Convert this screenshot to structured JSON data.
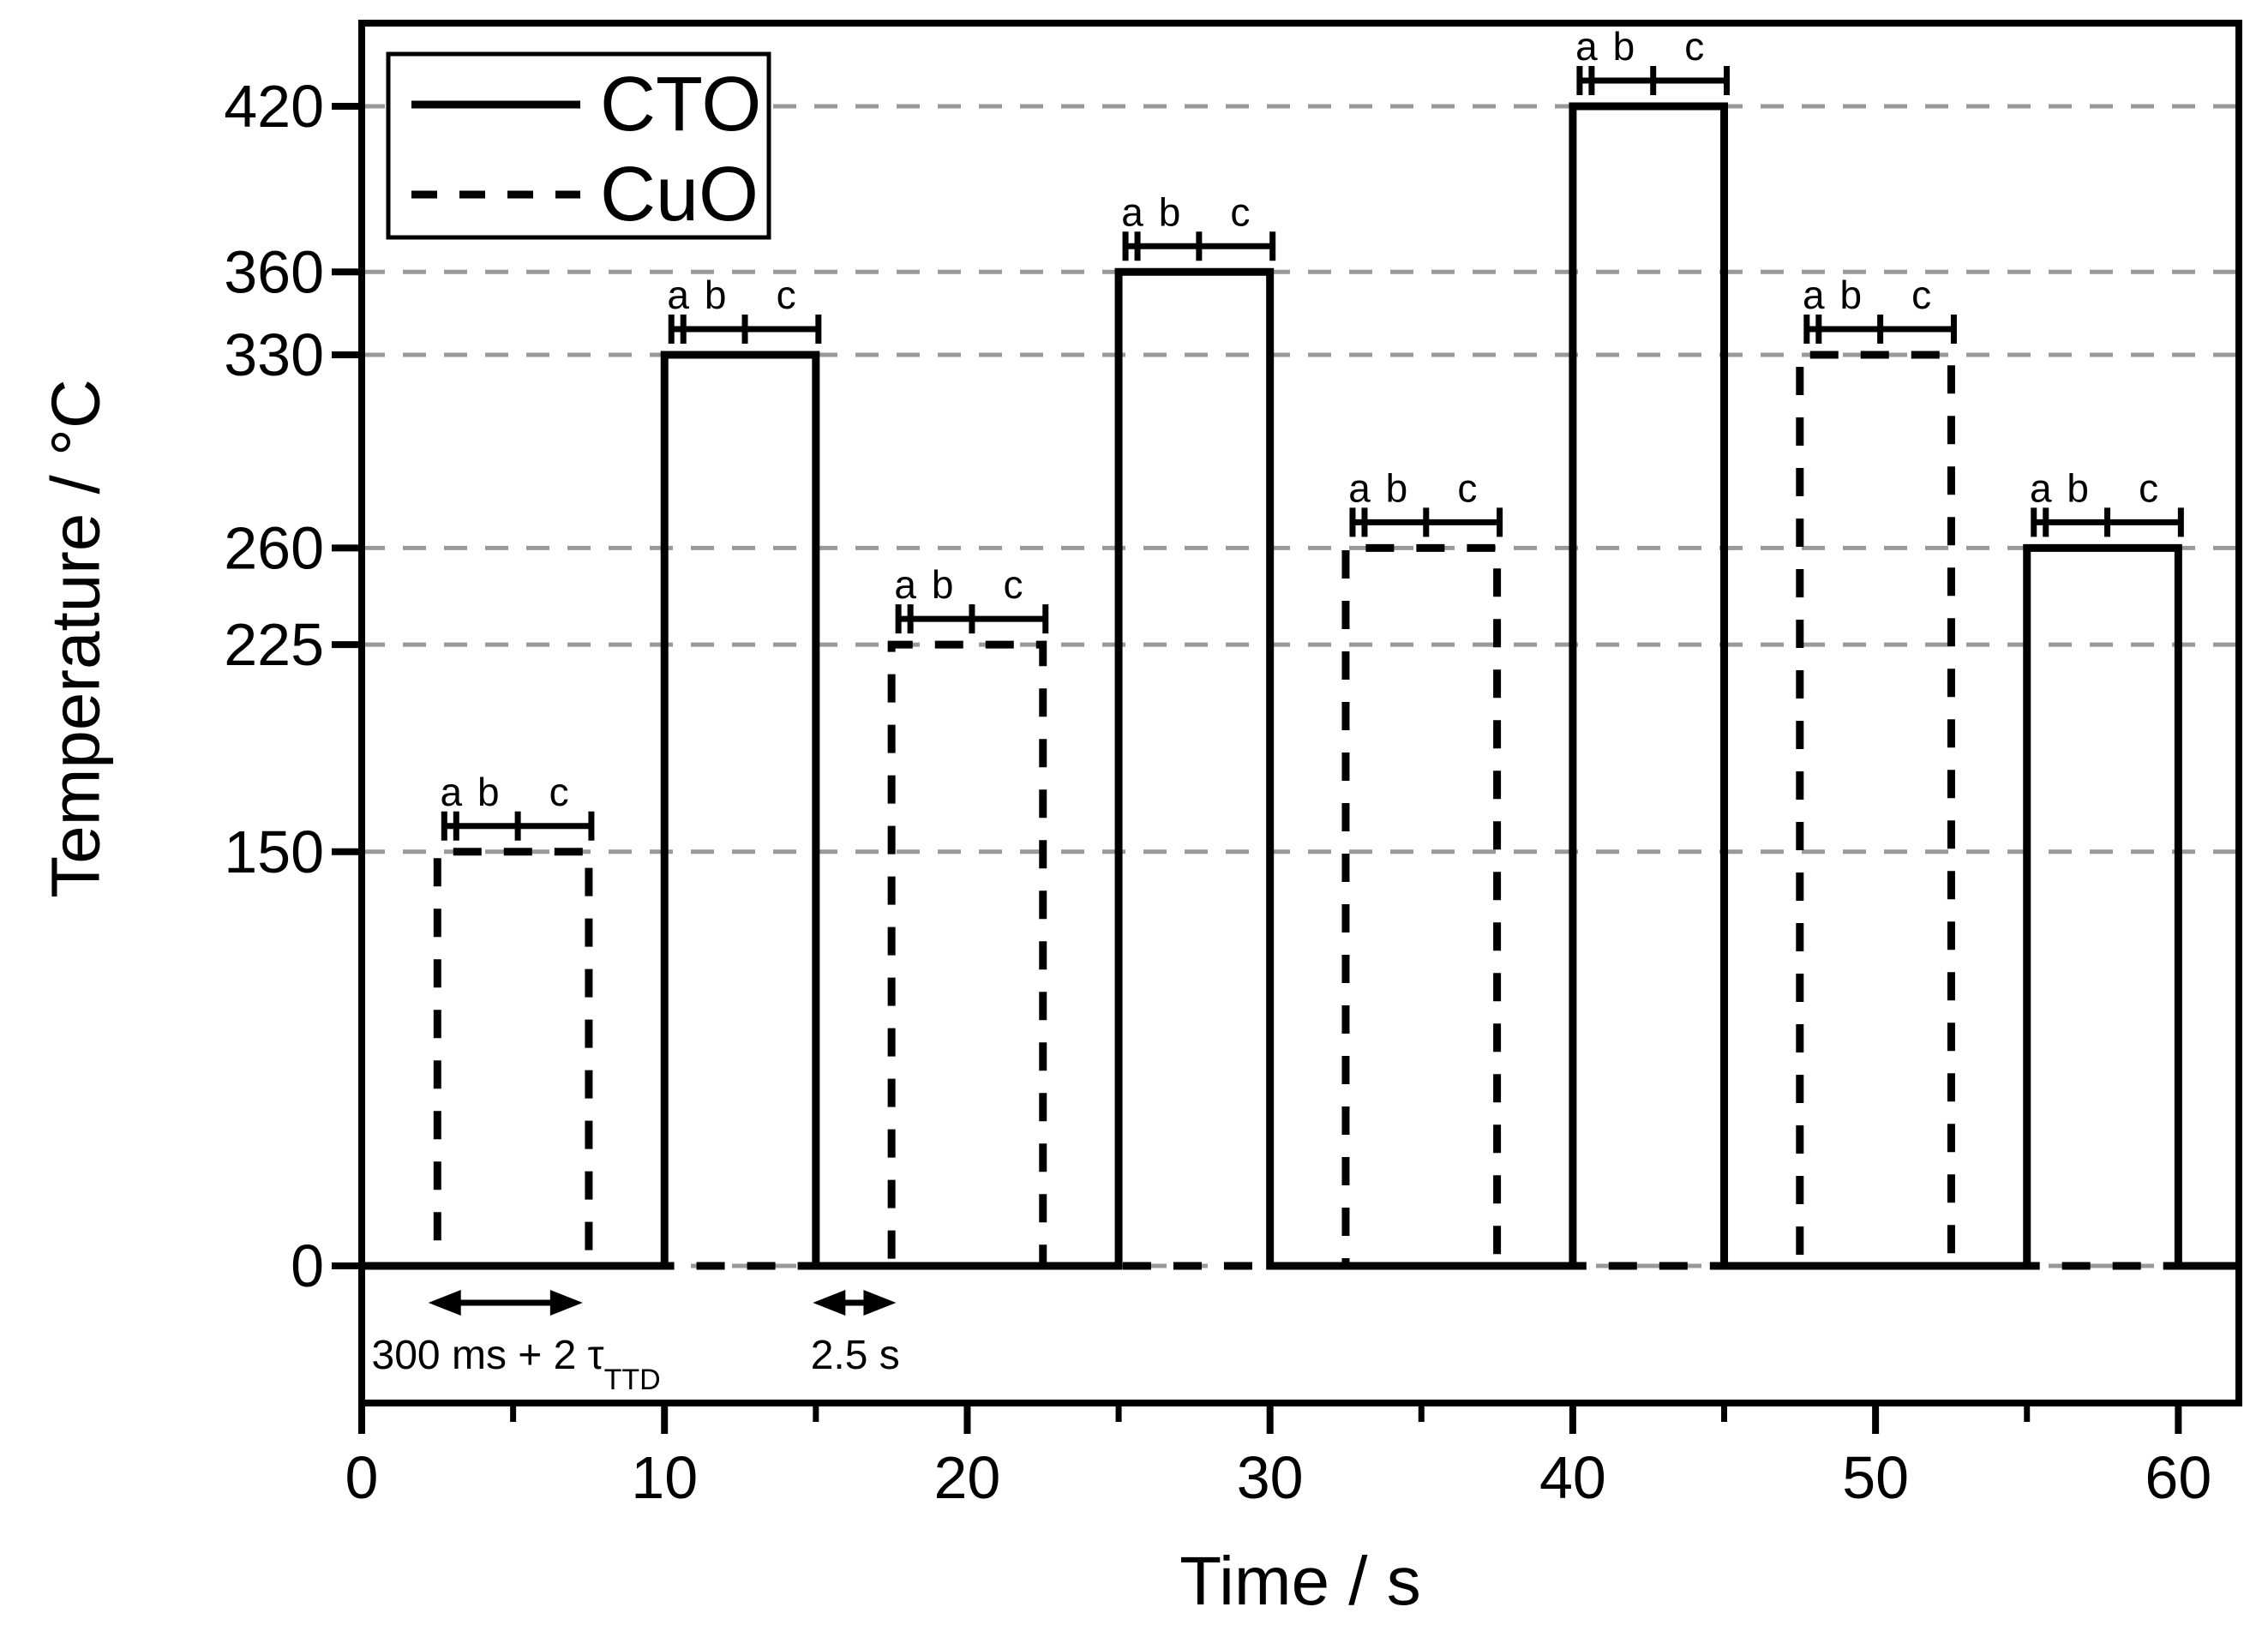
{
  "chart_data": {
    "type": "line",
    "subtype": "temperature-pulse-sequence",
    "xlabel": "Time / s",
    "ylabel": "Temperature / °C",
    "xlim": [
      0,
      62
    ],
    "ylim": [
      -50,
      450
    ],
    "x_major_ticks": [
      0,
      10,
      20,
      30,
      40,
      50,
      60
    ],
    "x_minor_ticks": [
      5,
      15,
      25,
      35,
      45,
      55
    ],
    "y_ticks": [
      0,
      150,
      225,
      260,
      330,
      360,
      420
    ],
    "grid_y_values": [
      0,
      150,
      225,
      260,
      330,
      360,
      420
    ],
    "grid_style": "dashed-horizontal",
    "legend": {
      "position": "top-left",
      "entries": [
        {
          "label": "CTO",
          "line_style": "solid"
        },
        {
          "label": "CuO",
          "line_style": "dashed"
        }
      ]
    },
    "series": [
      {
        "name": "CTO",
        "line_style": "solid",
        "baseline": 0,
        "pulses": [
          {
            "start": 10,
            "end": 15,
            "temp": 330
          },
          {
            "start": 25,
            "end": 30,
            "temp": 360
          },
          {
            "start": 40,
            "end": 45,
            "temp": 420
          },
          {
            "start": 55,
            "end": 60,
            "temp": 260
          }
        ]
      },
      {
        "name": "CuO",
        "line_style": "dashed",
        "baseline": 0,
        "pulses": [
          {
            "start": 2.5,
            "end": 7.5,
            "temp": 150
          },
          {
            "start": 17.5,
            "end": 22.5,
            "temp": 225
          },
          {
            "start": 32.5,
            "end": 37.5,
            "temp": 260
          },
          {
            "start": 47.5,
            "end": 52.5,
            "temp": 330
          }
        ]
      }
    ],
    "pulse_phase_labels": [
      "a",
      "b",
      "c"
    ],
    "annotations": [
      {
        "id": "pulse-duration",
        "text_main": "300 ms + 2 τ",
        "text_sub": "TTD",
        "arrow_start": 2.2,
        "arrow_end": 7.3,
        "label_x": 5.1
      },
      {
        "id": "pulse-gap",
        "text_main": "2.5 s",
        "text_sub": "",
        "arrow_start": 14.9,
        "arrow_end": 17.65,
        "label_x": 16.3
      }
    ],
    "colors": {
      "foreground": "#000000",
      "grid": "#999999",
      "background": "#ffffff"
    }
  }
}
